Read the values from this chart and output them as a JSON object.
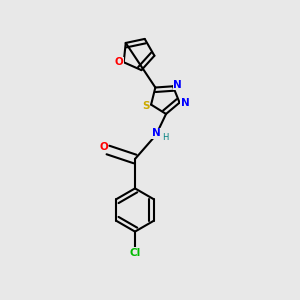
{
  "background_color": "#e8e8e8",
  "bond_color": "#000000",
  "atom_colors": {
    "O_furan": "#ff0000",
    "S": "#ccaa00",
    "N": "#0000ff",
    "N_H": "#0000ff",
    "H": "#008080",
    "O_carbonyl": "#ff0000",
    "Cl": "#00bb00",
    "C": "#000000"
  },
  "line_width": 1.5,
  "double_sep": 3.5,
  "figsize": [
    3.0,
    3.0
  ],
  "dpi": 100
}
